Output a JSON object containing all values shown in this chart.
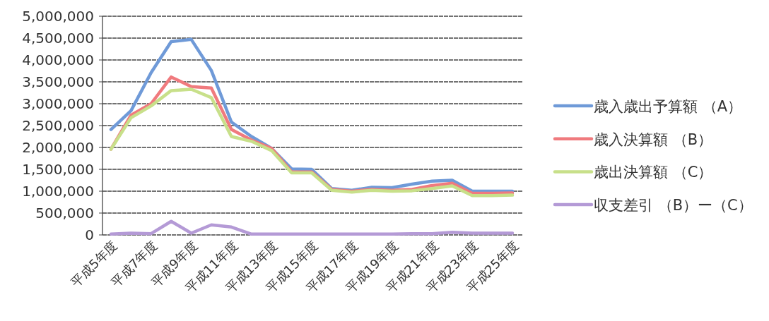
{
  "chart_data": {
    "type": "line",
    "categories": [
      "平成5年度",
      null,
      "平成7年度",
      null,
      "平成9年度",
      null,
      "平成11年度",
      null,
      "平成13年度",
      null,
      "平成15年度",
      null,
      "平成17年度",
      null,
      "平成19年度",
      null,
      "平成21年度",
      null,
      "平成23年度",
      null,
      "平成25年度"
    ],
    "series": [
      {
        "name": "歳入歳出予算額 （A）",
        "color": "#6f9ad8",
        "values": [
          2410000,
          2840000,
          3710000,
          4420000,
          4470000,
          3760000,
          2580000,
          2250000,
          1980000,
          1510000,
          1500000,
          1060000,
          1020000,
          1090000,
          1080000,
          1160000,
          1230000,
          1250000,
          1000000,
          1000000,
          1000000
        ]
      },
      {
        "name": "歳入決算額 （B）",
        "color": "#f07a7e",
        "values": [
          1960000,
          2740000,
          3000000,
          3610000,
          3390000,
          3360000,
          2410000,
          2170000,
          1980000,
          1440000,
          1440000,
          1040000,
          1000000,
          1040000,
          1020000,
          1040000,
          1130000,
          1180000,
          950000,
          950000,
          960000
        ]
      },
      {
        "name": "歳出決算額 （C）",
        "color": "#c8e08a",
        "values": [
          1960000,
          2680000,
          2950000,
          3300000,
          3330000,
          3140000,
          2250000,
          2140000,
          1930000,
          1420000,
          1420000,
          1020000,
          980000,
          1020000,
          1000000,
          1010000,
          1060000,
          1120000,
          900000,
          900000,
          910000
        ]
      },
      {
        "name": "収支差引 （B）ー（C）",
        "color": "#b49ad6",
        "values": [
          20000,
          40000,
          30000,
          310000,
          40000,
          230000,
          180000,
          20000,
          20000,
          20000,
          20000,
          20000,
          20000,
          20000,
          20000,
          30000,
          30000,
          60000,
          40000,
          40000,
          40000
        ]
      }
    ],
    "ylim": [
      0,
      5000000
    ],
    "yticks": [
      0,
      {
        "value": 500000,
        "label": "500,000"
      },
      {
        "value": 1000000,
        "label": "1,000,000"
      },
      {
        "value": 1500000,
        "label": "1,500,000"
      },
      {
        "value": 2000000,
        "label": "2,000,000"
      },
      {
        "value": 2500000,
        "label": "2,500,000"
      },
      {
        "value": 3000000,
        "label": "3,000,000"
      },
      {
        "value": 3500000,
        "label": "3,500,000"
      },
      {
        "value": 4000000,
        "label": "4,000,000"
      },
      {
        "value": 4500000,
        "label": "4,500,000"
      },
      {
        "value": 5000000,
        "label": "5,000,000"
      }
    ],
    "grid": "y",
    "legend": "right",
    "marker": "none",
    "line_style": "solid"
  }
}
